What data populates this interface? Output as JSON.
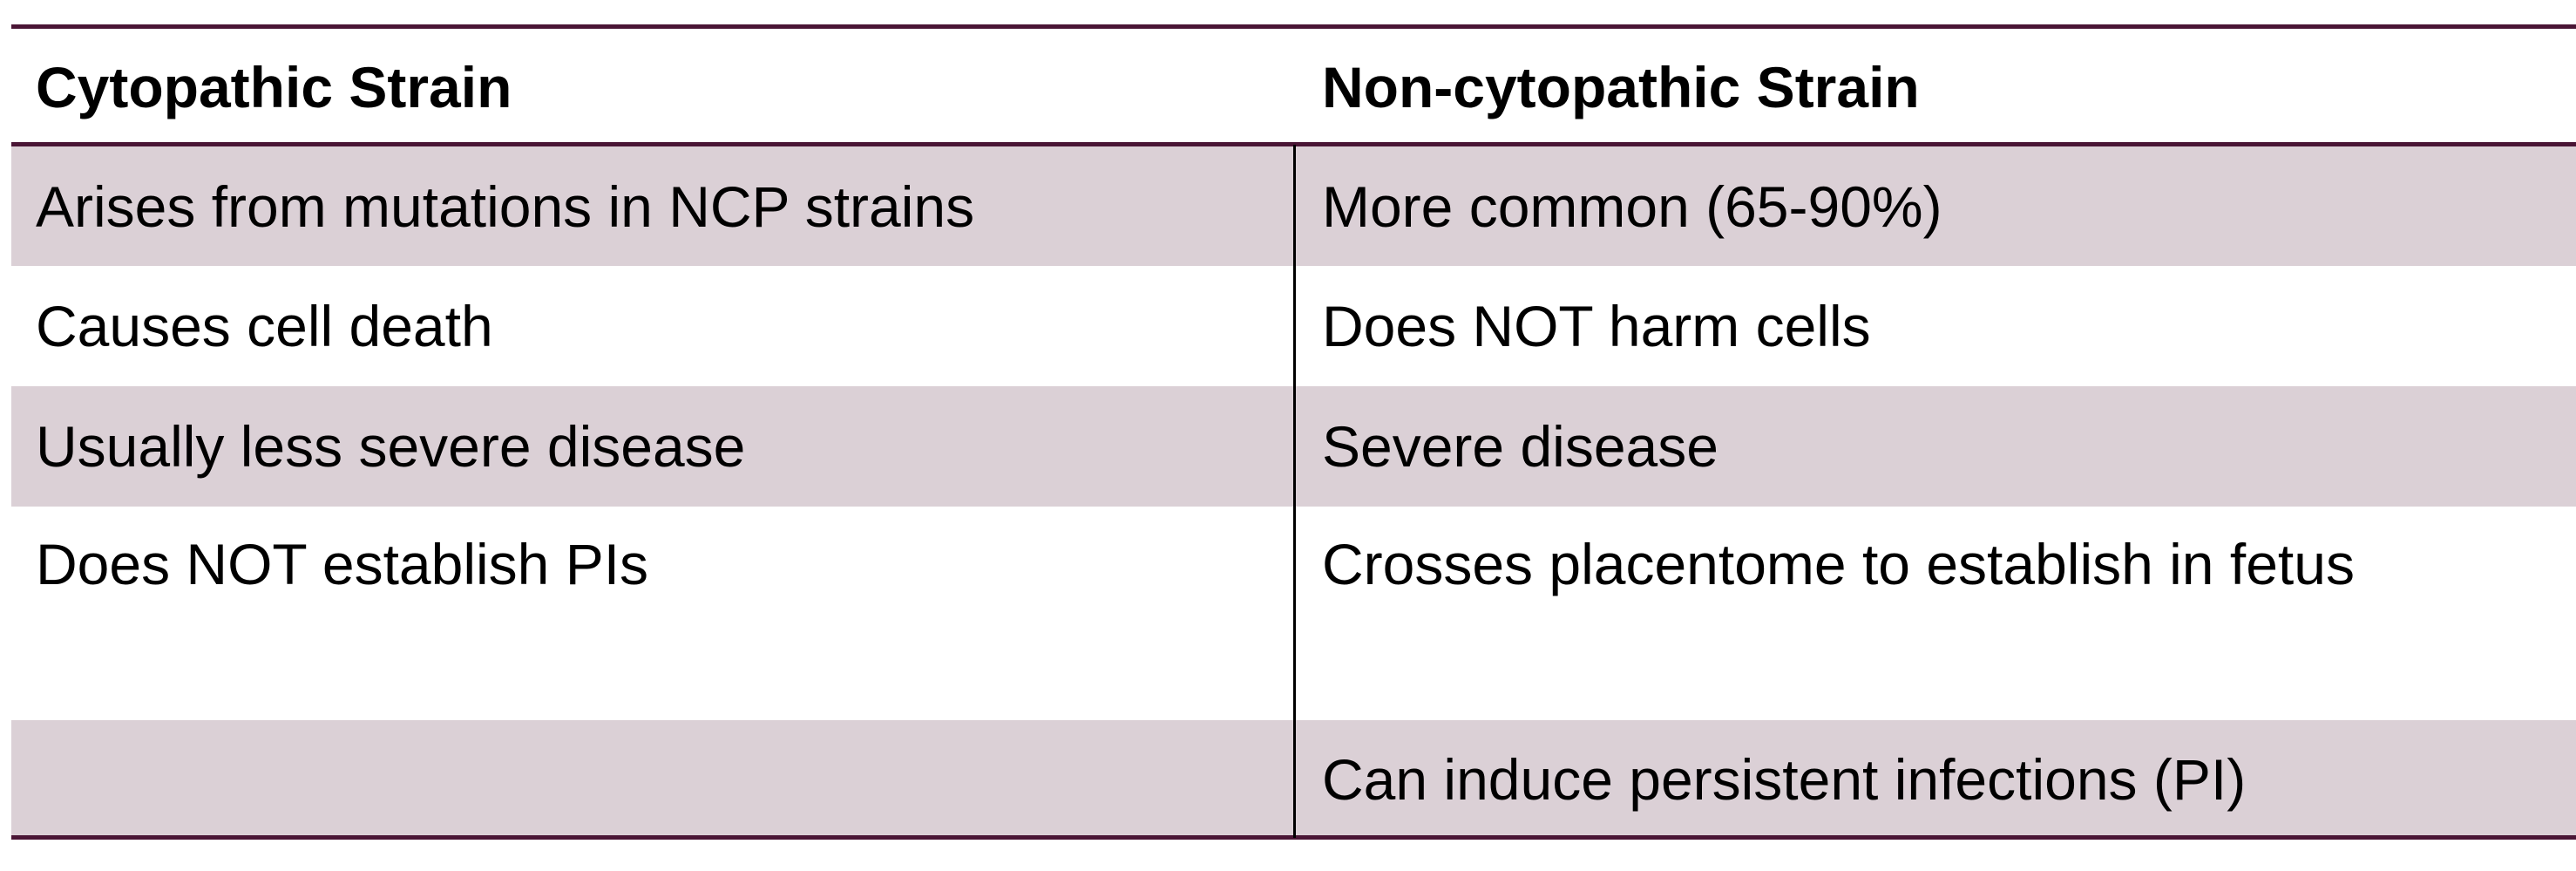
{
  "table": {
    "headers": [
      "Cytopathic Strain",
      "Non-cytopathic Strain"
    ],
    "rows": [
      [
        "Arises from mutations in NCP strains",
        "More common (65-90%)"
      ],
      [
        "Causes cell death",
        "Does NOT harm cells"
      ],
      [
        "Usually less severe disease",
        "Severe disease"
      ],
      [
        "Does NOT establish PIs",
        "Crosses placentome to establish in fetus"
      ],
      [
        "",
        "Can induce persistent infections (PI)"
      ]
    ]
  },
  "colors": {
    "rule": "#4a1535",
    "shade": "#dbd0d6"
  }
}
